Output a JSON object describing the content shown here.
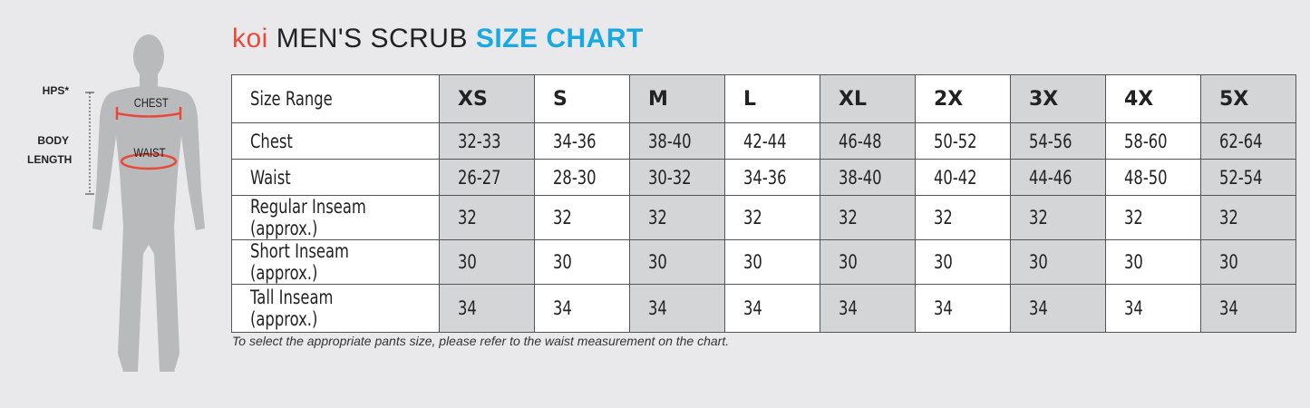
{
  "title": {
    "brand": "koi",
    "main": "MEN'S SCRUB",
    "highlight": "SIZE CHART"
  },
  "figure": {
    "hps": "HPS*",
    "body_length_1": "BODY",
    "body_length_2": "LENGTH",
    "chest": "CHEST",
    "waist": "WAIST"
  },
  "colors": {
    "brand": "#e8493b",
    "highlight": "#17a9e1",
    "shaded_column": "#d4d5d7",
    "arrow": "#e8493b"
  },
  "table": {
    "header": "Size Range",
    "sizes": [
      "XS",
      "S",
      "M",
      "L",
      "XL",
      "2X",
      "3X",
      "4X",
      "5X"
    ],
    "rows": [
      {
        "label": "Chest",
        "values": [
          "32-33",
          "34-36",
          "38-40",
          "42-44",
          "46-48",
          "50-52",
          "54-56",
          "58-60",
          "62-64"
        ]
      },
      {
        "label": "Waist",
        "values": [
          "26-27",
          "28-30",
          "30-32",
          "34-36",
          "38-40",
          "40-42",
          "44-46",
          "48-50",
          "52-54"
        ]
      },
      {
        "label": "Regular Inseam (approx.)",
        "values": [
          "32",
          "32",
          "32",
          "32",
          "32",
          "32",
          "32",
          "32",
          "32"
        ]
      },
      {
        "label": "Short Inseam (approx.)",
        "values": [
          "30",
          "30",
          "30",
          "30",
          "30",
          "30",
          "30",
          "30",
          "30"
        ]
      },
      {
        "label": "Tall Inseam (approx.)",
        "values": [
          "34",
          "34",
          "34",
          "34",
          "34",
          "34",
          "34",
          "34",
          "34"
        ]
      }
    ]
  },
  "note": "To select the appropriate pants size, please refer to the waist measurement on the chart."
}
